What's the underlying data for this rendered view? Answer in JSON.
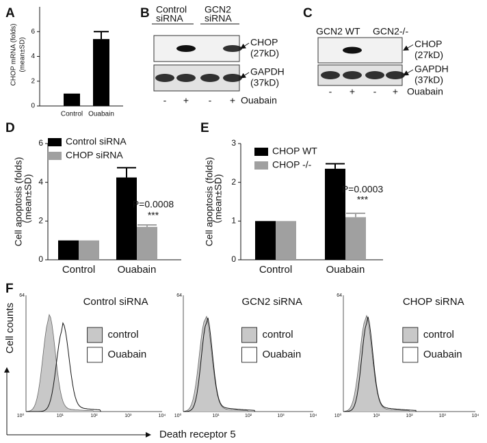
{
  "chart_data": [
    {
      "type": "bar",
      "label": "A",
      "ylabel": [
        "CHOP mRNA (folds)",
        "(mean±SD)"
      ],
      "categories": [
        "Control",
        "Ouabain"
      ],
      "values": [
        1,
        5.4
      ],
      "errors": [
        0,
        0.6
      ],
      "color": "#000000",
      "ylim": [
        0,
        8
      ],
      "yticks": [
        0,
        2,
        4,
        6
      ]
    },
    {
      "type": "bar",
      "label": "D",
      "ylabel": [
        "Cell apoptosis (folds)",
        "（mean±SD)"
      ],
      "categories": [
        "Control",
        "Ouabain"
      ],
      "series": [
        {
          "name": "Control siRNA",
          "color": "#000000",
          "values": [
            1,
            4.25
          ],
          "errors": [
            0,
            0.5
          ]
        },
        {
          "name": "CHOP siRNA",
          "color": "#a0a0a0",
          "values": [
            1,
            1.7
          ],
          "errors": [
            0,
            0.1
          ]
        }
      ],
      "ylim": [
        0,
        6
      ],
      "yticks": [
        0,
        2,
        4,
        6
      ],
      "annotations": [
        "P=0.0008",
        "***"
      ]
    },
    {
      "type": "bar",
      "label": "E",
      "ylabel": [
        "Cell apoptosis (folds)",
        "（mean±SD)"
      ],
      "categories": [
        "Control",
        "Ouabain"
      ],
      "series": [
        {
          "name": "CHOP WT",
          "color": "#000000",
          "values": [
            1,
            2.35
          ],
          "errors": [
            0,
            0.13
          ]
        },
        {
          "name": "CHOP -/-",
          "color": "#a0a0a0",
          "values": [
            1,
            1.1
          ],
          "errors": [
            0,
            0.1
          ]
        }
      ],
      "ylim": [
        0,
        3
      ],
      "yticks": [
        0,
        1,
        2,
        3
      ],
      "annotations": [
        "P=0.0003",
        "***"
      ]
    }
  ],
  "blots": [
    {
      "label": "B",
      "groups": [
        [
          "Control",
          "siRNA"
        ],
        [
          "GCN2",
          "siRNA"
        ]
      ],
      "bands": [
        [
          "CHOP",
          "(27kD)"
        ],
        [
          "GAPDH",
          "(37kD)"
        ]
      ],
      "signs": [
        "-",
        "+",
        "-",
        "+"
      ],
      "treatment": "Ouabain"
    },
    {
      "label": "C",
      "groups": [
        [
          "GCN2 WT"
        ],
        [
          "GCN2-/-"
        ]
      ],
      "bands": [
        [
          "CHOP",
          "(27kD)"
        ],
        [
          "GAPDH",
          "(37kD)"
        ]
      ],
      "signs": [
        "-",
        "+",
        "-",
        "+"
      ],
      "treatment": "Ouabain"
    }
  ],
  "flow": {
    "label": "F",
    "ylabel": "Cell counts",
    "xlabel": "Death receptor 5",
    "ymax_label": "64",
    "xtick_labels": [
      "10⁰",
      "10¹",
      "10²",
      "10³",
      "10⁴"
    ],
    "panels": [
      "Control siRNA",
      "GCN2 siRNA",
      "CHOP siRNA"
    ],
    "legend": [
      "control",
      "Ouabain"
    ]
  }
}
